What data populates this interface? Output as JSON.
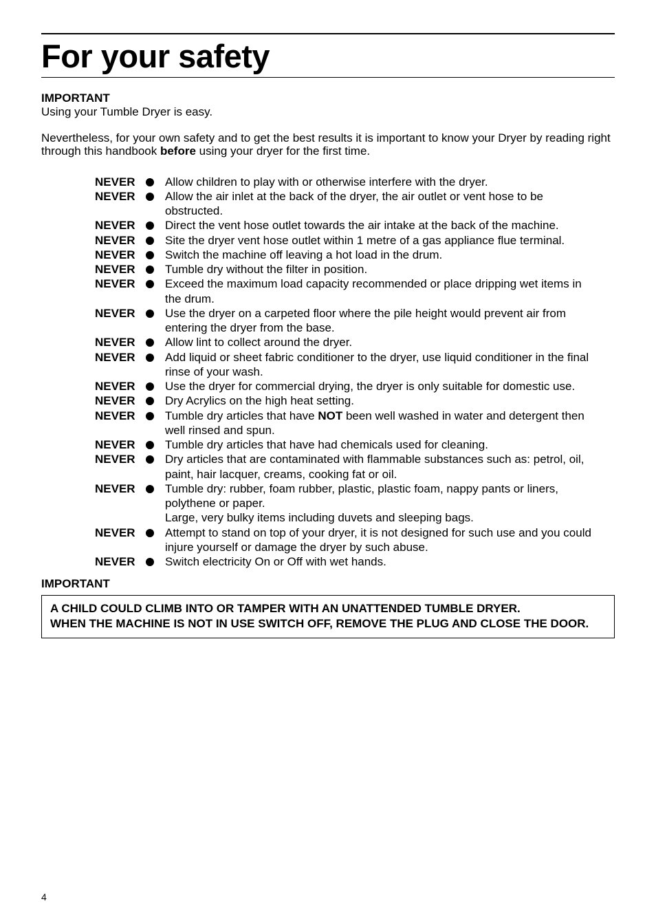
{
  "page": {
    "title": "For your safety",
    "subhead": "IMPORTANT",
    "intro_line": "Using your Tumble Dryer is easy.",
    "intro_para_before": "Nevertheless, for your own safety and to get the best results it is important to know your Dryer by reading right through this handbook ",
    "intro_para_bold": "before",
    "intro_para_after": " using your dryer for the first time.",
    "rules_label": "NEVER",
    "rules": [
      {
        "text": "Allow children to play with or otherwise interfere with the dryer."
      },
      {
        "text": "Allow the air inlet at the back of the dryer, the air outlet or vent hose to be obstructed."
      },
      {
        "text": "Direct the vent hose outlet towards the air intake at the back of the machine."
      },
      {
        "text": "Site the dryer vent hose outlet within 1 metre of a gas appliance flue terminal."
      },
      {
        "text": "Switch the machine off leaving a hot load in the drum."
      },
      {
        "text": "Tumble dry without the filter in position."
      },
      {
        "text": "Exceed the maximum load capacity recommended or place dripping wet items in the drum."
      },
      {
        "text": "Use the dryer on a carpeted floor where the pile height would prevent air from entering the dryer from the base."
      },
      {
        "text": "Allow lint to collect around the dryer."
      },
      {
        "text": "Add liquid or sheet fabric conditioner to the dryer, use liquid conditioner in the final rinse of your wash."
      },
      {
        "text": "Use the dryer for commercial drying, the dryer is only suitable for domestic use."
      },
      {
        "text": "Dry Acrylics on the high heat setting."
      },
      {
        "text_before": "Tumble dry articles that have ",
        "text_bold": "NOT",
        "text_after": " been well washed in water and detergent then well rinsed and spun."
      },
      {
        "text": "Tumble dry articles that have had chemicals used for cleaning."
      },
      {
        "text": "Dry articles that are contaminated with flammable substances such as: petrol, oil, paint, hair lacquer, creams, cooking fat or oil."
      },
      {
        "text": "Tumble dry: rubber, foam rubber, plastic, plastic foam, nappy pants or liners, polythene or paper.\nLarge, very    bulky items including duvets and sleeping bags."
      },
      {
        "text": "Attempt to stand on top of your dryer, it is not designed for such use and you could injure yourself or damage the dryer by such abuse."
      },
      {
        "text": "Switch electricity On or Off with wet hands."
      }
    ],
    "important_footer": "IMPORTANT",
    "warning_line1": "A CHILD COULD CLIMB INTO OR TAMPER WITH AN UNATTENDED TUMBLE DRYER.",
    "warning_line2": "WHEN THE MACHINE IS NOT IN USE SWITCH OFF, REMOVE THE PLUG AND CLOSE THE DOOR.",
    "page_number": "4"
  },
  "style": {
    "bullet_color": "#000000",
    "bullet_radius": 6
  }
}
